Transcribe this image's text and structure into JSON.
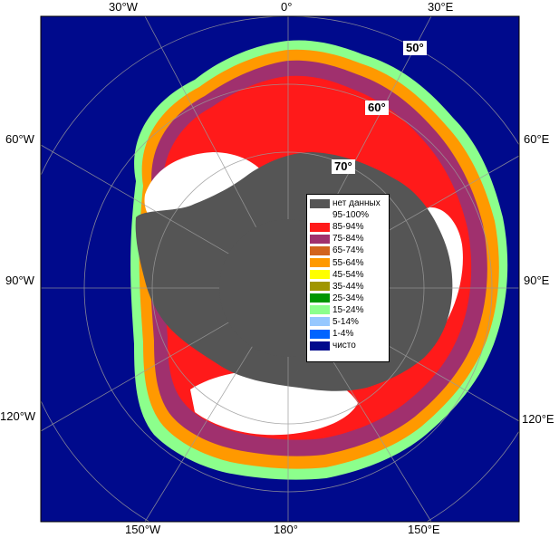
{
  "map": {
    "longitude_labels": {
      "lon_30w": "30°W",
      "lon_0": "0°",
      "lon_30e": "30°E",
      "lon_60w": "60°W",
      "lon_60e": "60°E",
      "lon_90w": "90°W",
      "lon_90e": "90°E",
      "lon_120w": "120°W",
      "lon_120e": "120°E",
      "lon_150w": "150°W",
      "lon_180": "180°",
      "lon_150e": "150°E"
    },
    "latitude_labels": {
      "lat_50": "50°",
      "lat_60": "60°",
      "lat_70": "70°"
    },
    "colors": {
      "open_water": "#000a8c",
      "no_data": "#555555",
      "ice_95_100": "#ffffff",
      "ice_85_94": "#ff1a1a",
      "ice_75_84": "#a0306e",
      "graticule": "#9a9a9a"
    }
  },
  "legend": {
    "items": [
      {
        "label": "нет данных",
        "color": "#555555"
      },
      {
        "label": "95-100%",
        "color": "#ffffff"
      },
      {
        "label": "85-94%",
        "color": "#ff1a1a"
      },
      {
        "label": "75-84%",
        "color": "#a0306e"
      },
      {
        "label": "65-74%",
        "color": "#d2641e"
      },
      {
        "label": "55-64%",
        "color": "#ff9900"
      },
      {
        "label": "45-54%",
        "color": "#ffff00"
      },
      {
        "label": "35-44%",
        "color": "#a09600"
      },
      {
        "label": "25-34%",
        "color": "#009600"
      },
      {
        "label": "15-24%",
        "color": "#8cff8c"
      },
      {
        "label": "5-14%",
        "color": "#96c8ff"
      },
      {
        "label": "1-4%",
        "color": "#0064ff"
      },
      {
        "label": "чисто",
        "color": "#000a8c"
      }
    ]
  }
}
